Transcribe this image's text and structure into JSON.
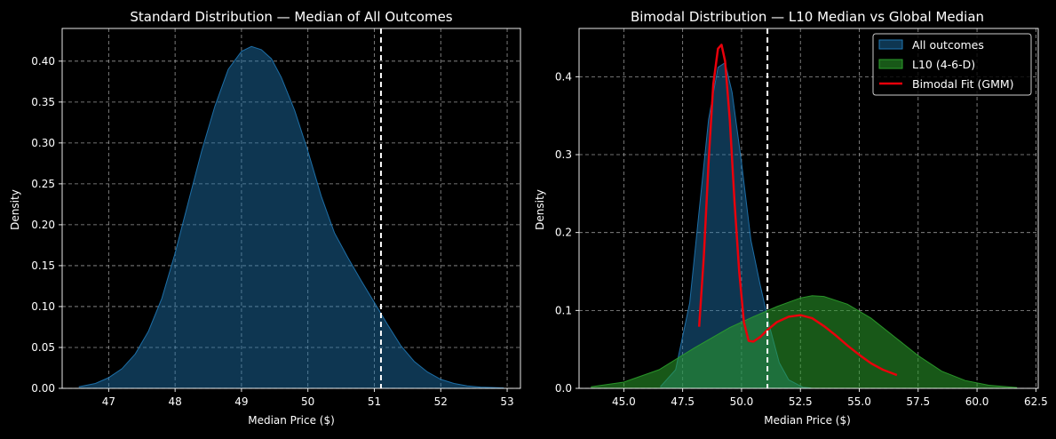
{
  "chart_data": [
    {
      "type": "area",
      "title": "Standard Distribution — Median of All Outcomes",
      "xlabel": "Median Price ($)",
      "ylabel": "Density",
      "xlim": [
        46.3,
        53.2
      ],
      "ylim": [
        0,
        0.44
      ],
      "xticks": [
        47,
        48,
        49,
        50,
        51,
        52,
        53
      ],
      "xtick_labels": [
        "47",
        "48",
        "49",
        "50",
        "51",
        "52",
        "53"
      ],
      "yticks": [
        0,
        0.05,
        0.1,
        0.15,
        0.2,
        0.25,
        0.3,
        0.35,
        0.4
      ],
      "ytick_labels": [
        "0.00",
        "0.05",
        "0.10",
        "0.15",
        "0.20",
        "0.25",
        "0.30",
        "0.35",
        "0.40"
      ],
      "grid": true,
      "reference_line_x": 51.1,
      "series": [
        {
          "style": "filled",
          "color": "#1f77b4",
          "x": [
            46.55,
            46.8,
            47.0,
            47.2,
            47.4,
            47.6,
            47.8,
            48.0,
            48.2,
            48.4,
            48.6,
            48.8,
            49.0,
            49.15,
            49.3,
            49.45,
            49.6,
            49.8,
            50.0,
            50.2,
            50.4,
            50.6,
            50.8,
            51.0,
            51.2,
            51.4,
            51.6,
            51.8,
            52.0,
            52.2,
            52.4,
            52.6,
            52.95
          ],
          "y": [
            0.002,
            0.006,
            0.013,
            0.024,
            0.042,
            0.07,
            0.11,
            0.165,
            0.228,
            0.29,
            0.345,
            0.39,
            0.412,
            0.418,
            0.414,
            0.403,
            0.38,
            0.34,
            0.29,
            0.235,
            0.19,
            0.16,
            0.132,
            0.105,
            0.078,
            0.052,
            0.033,
            0.02,
            0.011,
            0.006,
            0.003,
            0.0015,
            0.0005
          ]
        }
      ]
    },
    {
      "type": "area",
      "title": "Bimodal Distribution — L10 Median vs Global Median",
      "xlabel": "Median Price ($)",
      "ylabel": "Density",
      "xlim": [
        43.1,
        62.6
      ],
      "ylim": [
        0,
        0.462
      ],
      "xticks": [
        45.0,
        47.5,
        50.0,
        52.5,
        55.0,
        57.5,
        60.0,
        62.5
      ],
      "xtick_labels": [
        "45.0",
        "47.5",
        "50.0",
        "52.5",
        "55.0",
        "57.5",
        "60.0",
        "62.5"
      ],
      "yticks": [
        0,
        0.1,
        0.2,
        0.3,
        0.4
      ],
      "ytick_labels": [
        "0.0",
        "0.1",
        "0.2",
        "0.3",
        "0.4"
      ],
      "grid": true,
      "legend_position": "top-right",
      "reference_line_x": 51.1,
      "series": [
        {
          "name": "All outcomes",
          "style": "filled",
          "color": "#1f77b4",
          "x": [
            46.55,
            47.2,
            47.8,
            48.2,
            48.6,
            49.0,
            49.3,
            49.6,
            50.0,
            50.4,
            50.8,
            51.2,
            51.6,
            52.0,
            52.6,
            52.95
          ],
          "y": [
            0.002,
            0.024,
            0.11,
            0.228,
            0.345,
            0.412,
            0.418,
            0.38,
            0.29,
            0.19,
            0.132,
            0.078,
            0.033,
            0.011,
            0.0015,
            0.0005
          ]
        },
        {
          "name": "L10 (4-6-D)",
          "style": "filled",
          "color": "#2ca02c",
          "x": [
            43.6,
            45.0,
            46.5,
            48.0,
            49.5,
            50.5,
            51.5,
            52.5,
            53.0,
            53.5,
            54.5,
            55.5,
            56.5,
            57.5,
            58.5,
            59.5,
            60.5,
            61.7
          ],
          "y": [
            0.002,
            0.008,
            0.024,
            0.052,
            0.078,
            0.092,
            0.105,
            0.116,
            0.119,
            0.118,
            0.108,
            0.09,
            0.066,
            0.042,
            0.022,
            0.01,
            0.004,
            0.001
          ]
        },
        {
          "name": "Bimodal Fit (GMM)",
          "style": "line",
          "color": "#e8000b",
          "x": [
            48.2,
            48.4,
            48.6,
            48.8,
            49.0,
            49.15,
            49.3,
            49.5,
            49.7,
            49.9,
            50.1,
            50.3,
            50.5,
            50.8,
            51.1,
            51.5,
            52.0,
            52.5,
            53.0,
            53.5,
            54.0,
            54.5,
            55.0,
            55.5,
            56.0,
            56.6
          ],
          "y": [
            0.079,
            0.17,
            0.29,
            0.39,
            0.436,
            0.441,
            0.42,
            0.345,
            0.24,
            0.15,
            0.085,
            0.061,
            0.06,
            0.066,
            0.075,
            0.085,
            0.092,
            0.094,
            0.09,
            0.08,
            0.068,
            0.055,
            0.043,
            0.032,
            0.024,
            0.017
          ]
        }
      ]
    }
  ]
}
